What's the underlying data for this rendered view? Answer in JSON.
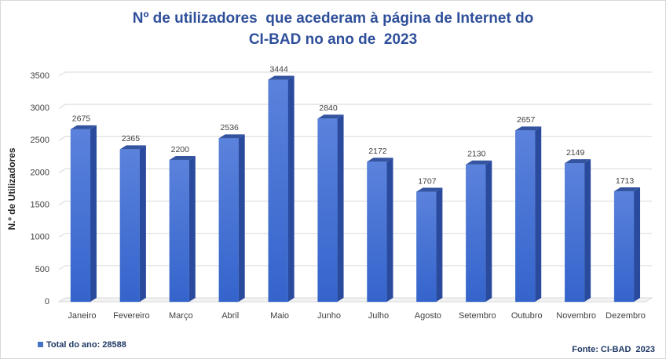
{
  "chart_data": {
    "type": "bar3d",
    "title": [
      "Nº de utilizadores  que acederam à página de Internet do",
      "CI-BAD no ano de  2023"
    ],
    "y_label": "N.º de Utilizadores",
    "categories": [
      "Janeiro",
      "Fevereiro",
      "Março",
      "Abril",
      "Maio",
      "Junho",
      "Julho",
      "Agosto",
      "Setembro",
      "Outubro",
      "Novembro",
      "Dezembro"
    ],
    "series": [
      {
        "name": "Total do ano: 28588",
        "color": "#4472c4",
        "values": [
          2675,
          2365,
          2200,
          2536,
          3444,
          2840,
          2172,
          1707,
          2130,
          2657,
          2149,
          1713
        ]
      }
    ],
    "ylim": [
      0,
      3500
    ],
    "yticks": [
      0,
      500,
      1000,
      1500,
      2000,
      2500,
      3000,
      3500
    ],
    "grid": true,
    "legend": "bottom-left",
    "source": "Fonte: CI-BAD  2023"
  }
}
